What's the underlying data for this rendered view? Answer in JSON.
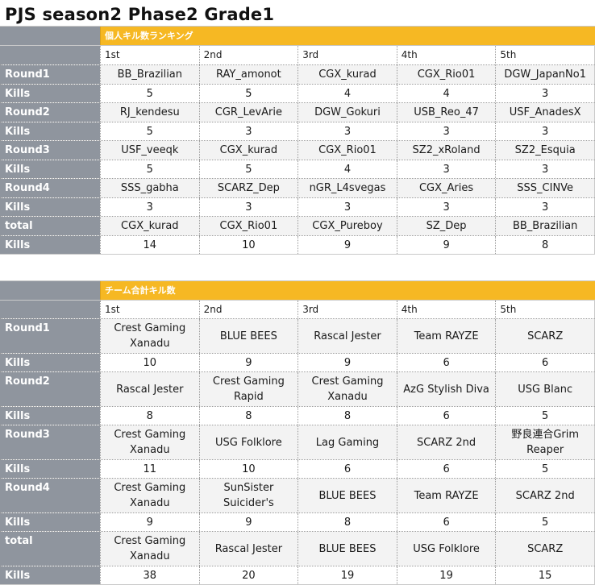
{
  "title": "PJS season2 Phase2 Grade1",
  "ranks": [
    "1st",
    "2nd",
    "3rd",
    "4th",
    "5th"
  ],
  "individual": {
    "section_title": "個人キル数ランキング",
    "rows": [
      {
        "label": "Round1",
        "names": [
          "BB_Brazilian",
          "RAY_amonot",
          "CGX_kurad",
          "CGX_Rio01",
          "DGW_JapanNo1"
        ],
        "kills_label": "Kills",
        "kills": [
          "5",
          "5",
          "4",
          "4",
          "3"
        ]
      },
      {
        "label": "Round2",
        "names": [
          "RJ_kendesu",
          "CGR_LevArie",
          "DGW_Gokuri",
          "USB_Reo_47",
          "USF_AnadesX"
        ],
        "kills_label": "Kills",
        "kills": [
          "5",
          "3",
          "3",
          "3",
          "3"
        ]
      },
      {
        "label": "Round3",
        "names": [
          "USF_veeqk",
          "CGX_kurad",
          "CGX_Rio01",
          "SZ2_xRoland",
          "SZ2_Esquia"
        ],
        "kills_label": "Kills",
        "kills": [
          "5",
          "5",
          "4",
          "3",
          "3"
        ]
      },
      {
        "label": "Round4",
        "names": [
          "SSS_gabha",
          "SCARZ_Dep",
          "nGR_L4svegas",
          "CGX_Aries",
          "SSS_CINVe"
        ],
        "kills_label": "Kills",
        "kills": [
          "3",
          "3",
          "3",
          "3",
          "3"
        ]
      },
      {
        "label": "total",
        "names": [
          "CGX_kurad",
          "CGX_Rio01",
          "CGX_Pureboy",
          "SZ_Dep",
          "BB_Brazilian"
        ],
        "kills_label": "Kills",
        "kills": [
          "14",
          "10",
          "9",
          "9",
          "8"
        ]
      }
    ]
  },
  "team": {
    "section_title": "チーム合計キル数",
    "rows": [
      {
        "label": "Round1",
        "names": [
          "Crest Gaming Xanadu",
          "BLUE BEES",
          "Rascal Jester",
          "Team RAYZE",
          "SCARZ"
        ],
        "kills_label": "Kills",
        "kills": [
          "10",
          "9",
          "9",
          "6",
          "6"
        ]
      },
      {
        "label": "Round2",
        "names": [
          "Rascal Jester",
          "Crest Gaming Rapid",
          "Crest Gaming Xanadu",
          "AzG Stylish Diva",
          "USG Blanc"
        ],
        "kills_label": "Kills",
        "kills": [
          "8",
          "8",
          "8",
          "6",
          "5"
        ]
      },
      {
        "label": "Round3",
        "names": [
          "Crest Gaming Xanadu",
          "USG Folklore",
          "Lag Gaming",
          "SCARZ 2nd",
          "野良連合Grim Reaper"
        ],
        "kills_label": "Kills",
        "kills": [
          "11",
          "10",
          "6",
          "6",
          "5"
        ]
      },
      {
        "label": "Round4",
        "names": [
          "Crest Gaming Xanadu",
          "SunSister Suicider's",
          "BLUE BEES",
          "Team RAYZE",
          "SCARZ 2nd"
        ],
        "kills_label": "Kills",
        "kills": [
          "9",
          "9",
          "8",
          "6",
          "5"
        ]
      },
      {
        "label": "total",
        "names": [
          "Crest Gaming Xanadu",
          "Rascal Jester",
          "BLUE BEES",
          "USG Folklore",
          "SCARZ"
        ],
        "kills_label": "Kills",
        "kills": [
          "38",
          "20",
          "19",
          "19",
          "15"
        ]
      }
    ]
  },
  "colors": {
    "header_bar": "#f6b823",
    "label_column": "#8f959e",
    "name_row": "#f3f3f3"
  }
}
